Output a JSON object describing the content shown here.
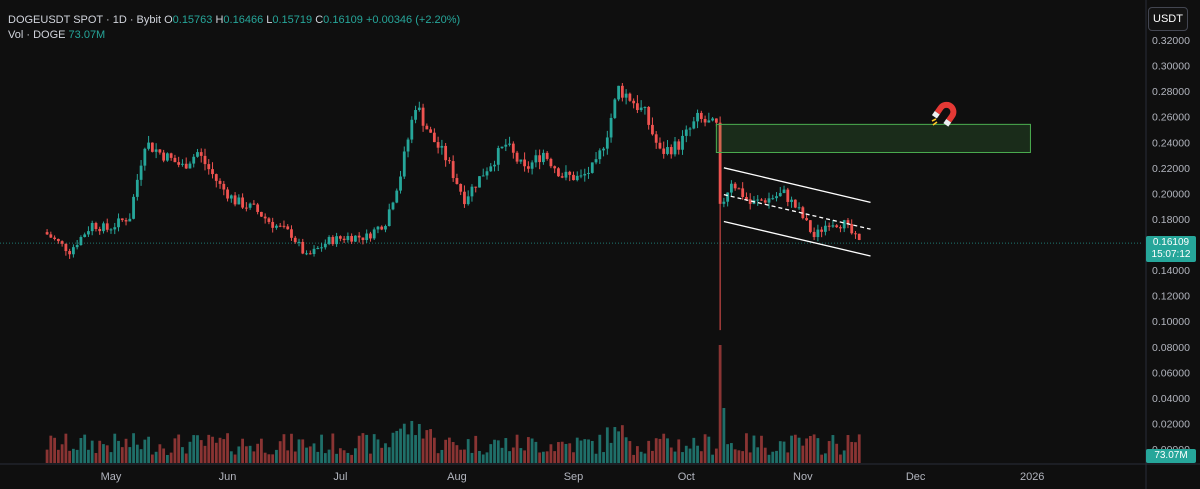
{
  "legend": {
    "symbol": "DOGEUSDT SPOT · 1D · Bybit",
    "open_label": "O",
    "open": "0.15763",
    "high_label": "H",
    "high": "0.16466",
    "low_label": "L",
    "low": "0.15719",
    "close_label": "C",
    "close": "0.16109",
    "change": "+0.00346 (+2.20%)",
    "volume_label": "Vol · DOGE",
    "volume": "73.07M"
  },
  "toolbar": {
    "currency": "USDT"
  },
  "price_tag": {
    "price": "0.16109",
    "countdown": "15:07:12"
  },
  "volume_tag": "73.07M",
  "colors": {
    "up": "#26a69a",
    "down": "#ef5350",
    "vol_up": "#1f6f69",
    "vol_down": "#8a3433",
    "zone": "#4caf50",
    "channel": "#ffffff",
    "background": "#0f0f0f"
  },
  "icons": {
    "magnet": "magnet-icon"
  },
  "chart_data": {
    "type": "candlestick",
    "symbol": "DOGEUSDT",
    "interval": "1D",
    "y_axis_ticks": [
      "0.32000",
      "0.30000",
      "0.28000",
      "0.26000",
      "0.24000",
      "0.22000",
      "0.20000",
      "0.18000",
      "0.16000",
      "0.14000",
      "0.12000",
      "0.10000",
      "0.08000",
      "0.06000",
      "0.04000",
      "0.02000",
      "0.00000"
    ],
    "ylim": [
      0,
      0.325
    ],
    "x_axis_ticks": [
      "May",
      "Jun",
      "Jul",
      "Aug",
      "Sep",
      "Oct",
      "Nov",
      "Dec",
      "2026"
    ],
    "last_price": 0.16109,
    "anchors": [
      {
        "date": "Apr 14",
        "close": 0.168
      },
      {
        "date": "Apr 20",
        "close": 0.155
      },
      {
        "date": "Apr 26",
        "close": 0.176
      },
      {
        "date": "Apr 30",
        "close": 0.172
      },
      {
        "date": "May 6",
        "close": 0.182
      },
      {
        "date": "May 10",
        "close": 0.24
      },
      {
        "date": "May 14",
        "close": 0.232
      },
      {
        "date": "May 20",
        "close": 0.221
      },
      {
        "date": "May 24",
        "close": 0.232
      },
      {
        "date": "May 30",
        "close": 0.206
      },
      {
        "date": "Jun 3",
        "close": 0.194
      },
      {
        "date": "Jun 8",
        "close": 0.188
      },
      {
        "date": "Jun 13",
        "close": 0.176
      },
      {
        "date": "Jun 18",
        "close": 0.168
      },
      {
        "date": "Jun 22",
        "close": 0.15
      },
      {
        "date": "Jun 28",
        "close": 0.163
      },
      {
        "date": "Jul 3",
        "close": 0.166
      },
      {
        "date": "Jul 8",
        "close": 0.166
      },
      {
        "date": "Jul 13",
        "close": 0.178
      },
      {
        "date": "Jul 17",
        "close": 0.215
      },
      {
        "date": "Jul 21",
        "close": 0.27
      },
      {
        "date": "Jul 25",
        "close": 0.245
      },
      {
        "date": "Jul 29",
        "close": 0.228
      },
      {
        "date": "Aug 3",
        "close": 0.196
      },
      {
        "date": "Aug 9",
        "close": 0.22
      },
      {
        "date": "Aug 14",
        "close": 0.238
      },
      {
        "date": "Aug 19",
        "close": 0.218
      },
      {
        "date": "Aug 24",
        "close": 0.232
      },
      {
        "date": "Aug 29",
        "close": 0.214
      },
      {
        "date": "Sep 3",
        "close": 0.212
      },
      {
        "date": "Sep 7",
        "close": 0.222
      },
      {
        "date": "Sep 10",
        "close": 0.248
      },
      {
        "date": "Sep 13",
        "close": 0.282
      },
      {
        "date": "Sep 16",
        "close": 0.275
      },
      {
        "date": "Sep 20",
        "close": 0.262
      },
      {
        "date": "Sep 24",
        "close": 0.232
      },
      {
        "date": "Sep 29",
        "close": 0.238
      },
      {
        "date": "Oct 4",
        "close": 0.258
      },
      {
        "date": "Oct 9",
        "close": 0.252
      },
      {
        "date": "Oct 10",
        "close": 0.188
      },
      {
        "date": "Oct 13",
        "close": 0.21
      },
      {
        "date": "Oct 18",
        "close": 0.192
      },
      {
        "date": "Oct 23",
        "close": 0.196
      },
      {
        "date": "Oct 27",
        "close": 0.2
      },
      {
        "date": "Oct 31",
        "close": 0.186
      },
      {
        "date": "Nov 4",
        "close": 0.166
      },
      {
        "date": "Nov 8",
        "close": 0.178
      },
      {
        "date": "Nov 12",
        "close": 0.176
      },
      {
        "date": "Nov 16",
        "close": 0.161
      }
    ],
    "flash_crash_low": 0.093,
    "volume_spike_date": "Oct 10",
    "zones": [
      {
        "type": "rectangle",
        "from": "Oct 9",
        "to": "Dec 31",
        "low": 0.232,
        "high": 0.254
      }
    ],
    "channel": {
      "upper": [
        {
          "date": "Oct 11",
          "price": 0.22
        },
        {
          "date": "Nov 19",
          "price": 0.193
        }
      ],
      "lower": [
        {
          "date": "Oct 11",
          "price": 0.178
        },
        {
          "date": "Nov 19",
          "price": 0.151
        }
      ],
      "mid": [
        {
          "date": "Oct 11",
          "price": 0.199
        },
        {
          "date": "Nov 19",
          "price": 0.172
        }
      ]
    }
  }
}
